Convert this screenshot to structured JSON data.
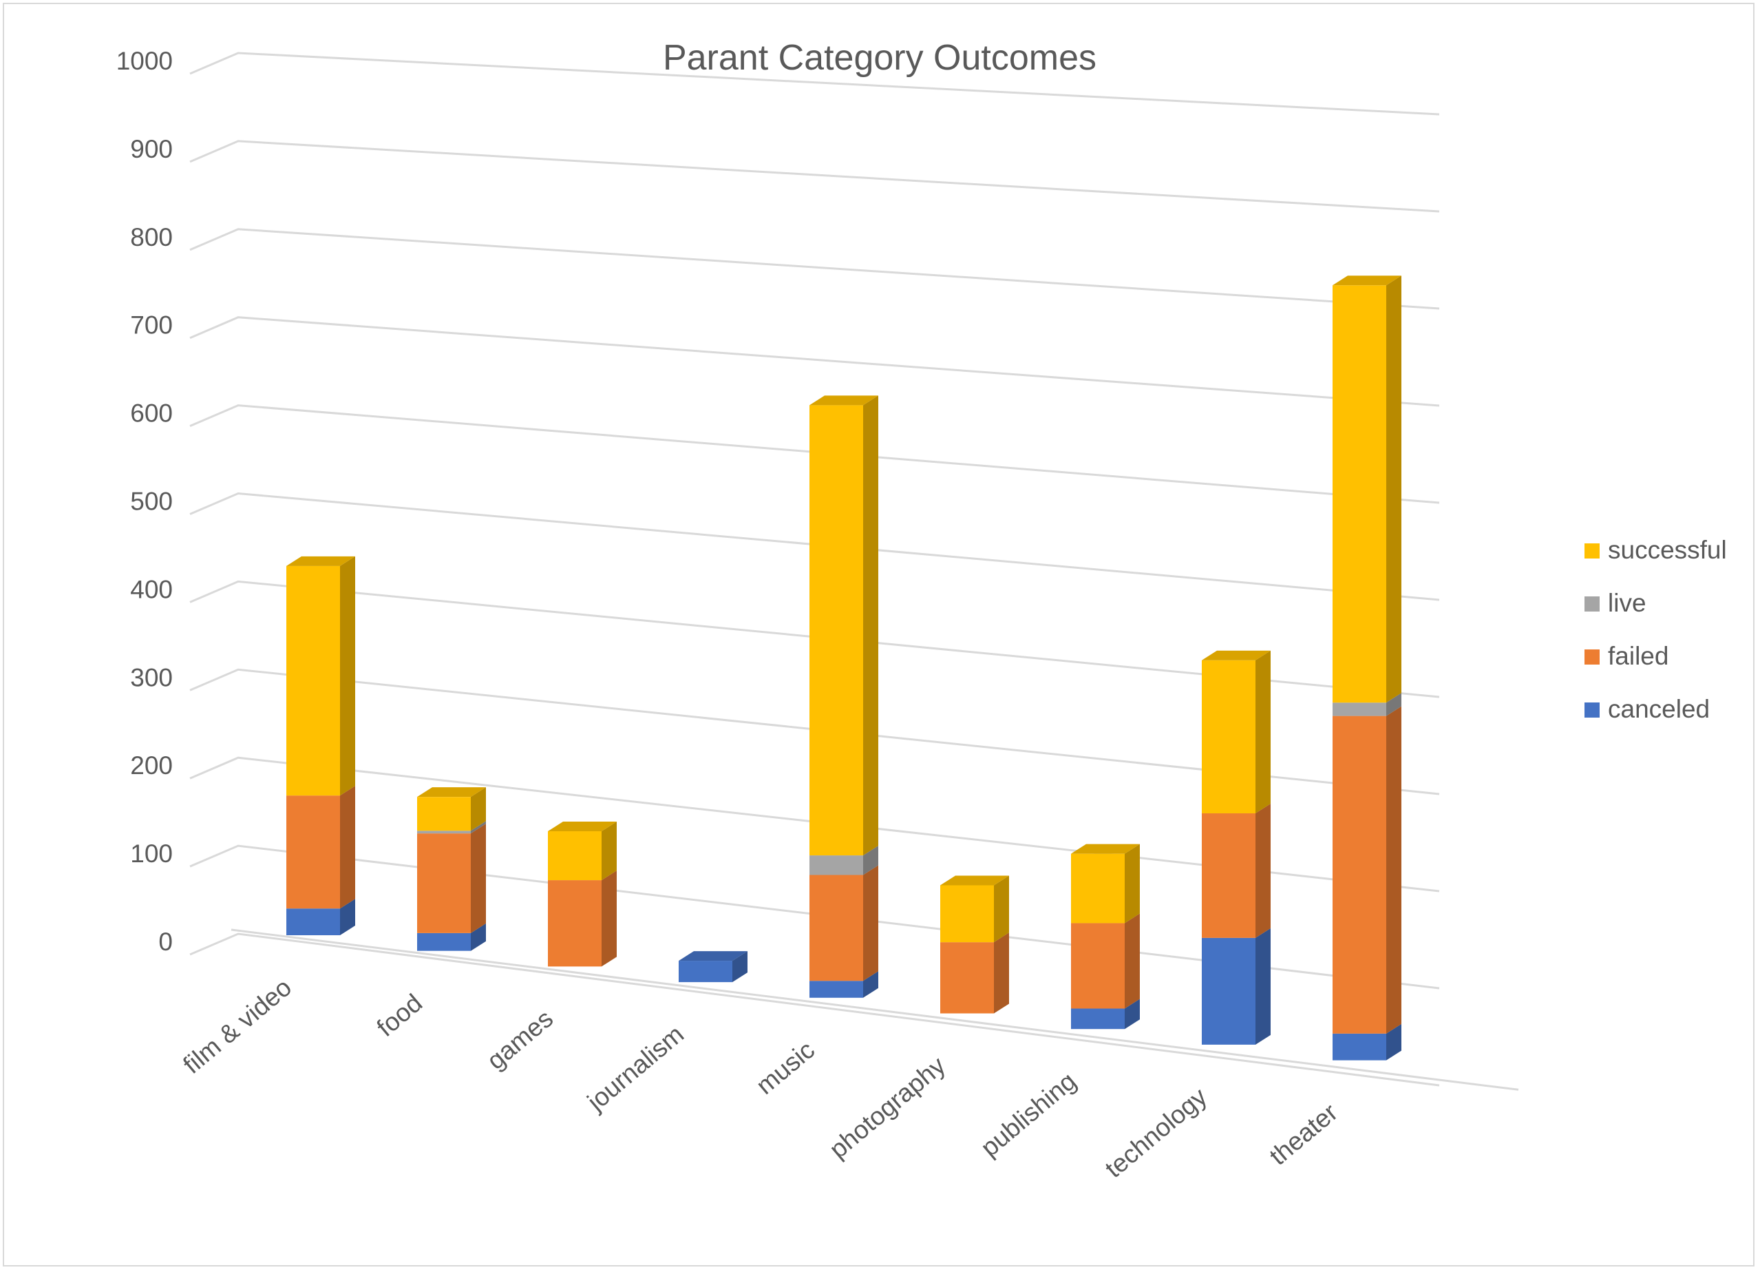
{
  "chart_data": {
    "type": "bar",
    "stacked": true,
    "view": "3d",
    "title": "Parant Category Outcomes",
    "xlabel": "",
    "ylabel": "",
    "ylim": [
      0,
      1000
    ],
    "yticks": [
      0,
      100,
      200,
      300,
      400,
      500,
      600,
      700,
      800,
      900,
      1000
    ],
    "grid": true,
    "legend_position": "right",
    "categories": [
      "film & video",
      "food",
      "games",
      "journalism",
      "music",
      "photography",
      "publishing",
      "technology",
      "theater"
    ],
    "series": [
      {
        "name": "canceled",
        "color": "#4472C4",
        "values": [
          30,
          20,
          0,
          24,
          19,
          0,
          23,
          120,
          30
        ]
      },
      {
        "name": "failed",
        "color": "#ED7D31",
        "values": [
          127,
          112,
          97,
          0,
          119,
          80,
          96,
          140,
          357
        ]
      },
      {
        "name": "live",
        "color": "#A5A5A5",
        "values": [
          0,
          3,
          0,
          0,
          22,
          0,
          0,
          0,
          15
        ]
      },
      {
        "name": "successful",
        "color": "#FFC000",
        "values": [
          258,
          38,
          55,
          0,
          506,
          64,
          78,
          172,
          469
        ]
      }
    ],
    "legend_order": [
      "successful",
      "live",
      "failed",
      "canceled"
    ]
  }
}
